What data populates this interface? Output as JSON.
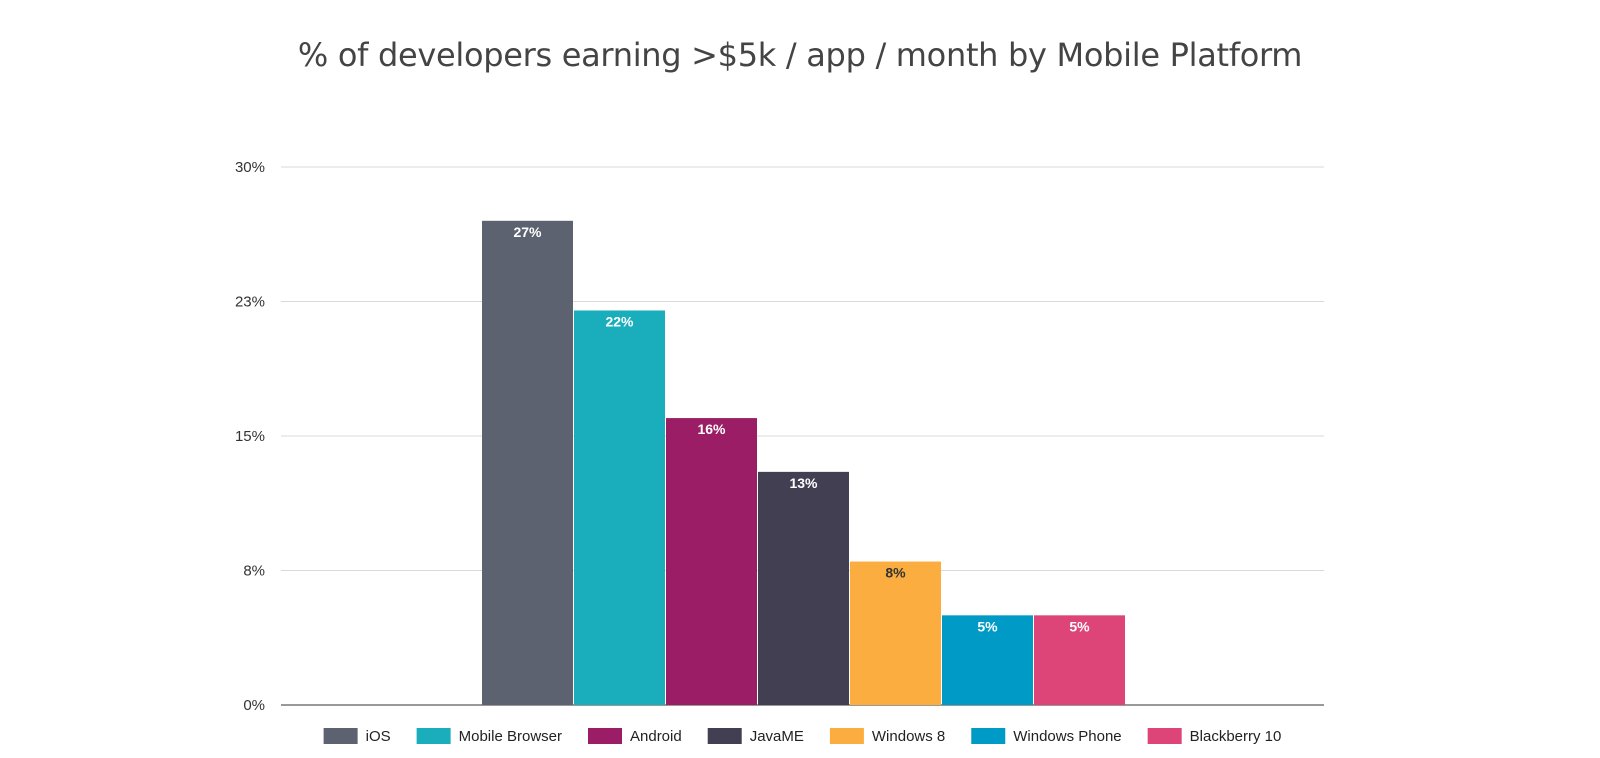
{
  "chart_data": {
    "type": "bar",
    "title": "% of developers earning >$5k / app / month by Mobile Platform",
    "xlabel": "",
    "ylabel": "",
    "ylim": [
      0,
      30
    ],
    "y_ticks": [
      0,
      7.5,
      15,
      22.5,
      30
    ],
    "y_tick_labels": [
      "0%",
      "8%",
      "15%",
      "23%",
      "30%"
    ],
    "grid": true,
    "legend_position": "bottom",
    "categories": [
      "iOS",
      "Mobile Browser",
      "Android",
      "JavaME",
      "Windows 8",
      "Windows Phone",
      "Blackberry 10"
    ],
    "values": [
      27,
      22,
      16,
      13,
      8,
      5,
      5
    ],
    "data_labels": [
      "27%",
      "22%",
      "16%",
      "13%",
      "8%",
      "5%",
      "5%"
    ],
    "colors": [
      "#5c6270",
      "#1aaebd",
      "#9b1d66",
      "#433f53",
      "#fbae3f",
      "#009ac7",
      "#dd4477"
    ],
    "label_colors": [
      "#ffffff",
      "#ffffff",
      "#ffffff",
      "#ffffff",
      "#333333",
      "#ffffff",
      "#ffffff"
    ]
  }
}
